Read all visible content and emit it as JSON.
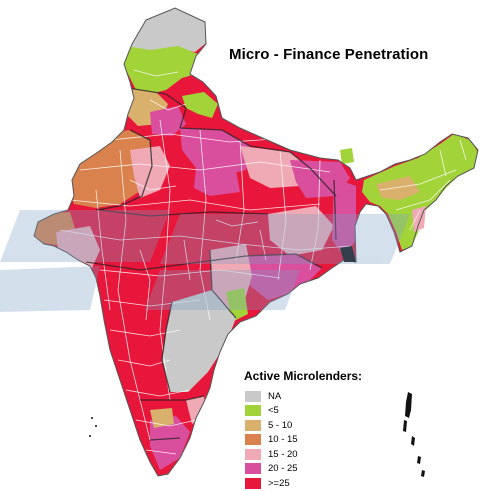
{
  "map": {
    "title": "Micro - Finance Penetration",
    "legend_title": "Active Microlenders:",
    "legend": [
      {
        "label": "NA",
        "color": "#c9c9c9"
      },
      {
        "label": "<5",
        "color": "#a2d43a"
      },
      {
        "label": "5 - 10",
        "color": "#d9b06c"
      },
      {
        "label": "10 - 15",
        "color": "#d9824d"
      },
      {
        "label": "15 - 20",
        "color": "#efaab6"
      },
      {
        "label": "20 - 25",
        "color": "#d94f9e"
      },
      {
        "label": ">=25",
        "color": "#e8163a"
      }
    ],
    "watermark_color": "#8aa8c8"
  }
}
